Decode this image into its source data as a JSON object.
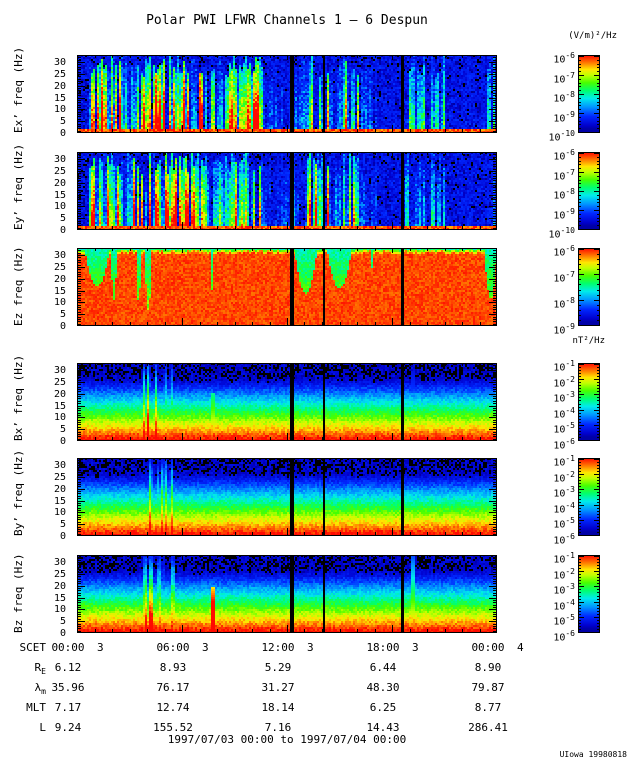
{
  "title": "Polar PWI LFWR Channels 1 – 6 Despun",
  "credit": "UIowa 19980818",
  "footer": {
    "rows": [
      {
        "label": "SCET",
        "sub": "",
        "values": [
          "00:00",
          "06:00",
          "12:00",
          "18:00",
          "00:00"
        ],
        "days": [
          "3",
          "3",
          "3",
          "3",
          "4"
        ]
      },
      {
        "label": "R",
        "sub": "E",
        "values": [
          "6.12",
          "8.93",
          "5.29",
          "6.44",
          "8.90"
        ]
      },
      {
        "label": "λ",
        "sub": "m",
        "values": [
          "35.96",
          "76.17",
          "31.27",
          "48.30",
          "79.87"
        ]
      },
      {
        "label": "MLT",
        "sub": "",
        "values": [
          "7.17",
          "12.74",
          "18.14",
          "6.25",
          "8.77"
        ]
      },
      {
        "label": "L",
        "sub": "",
        "values": [
          "9.24",
          "155.52",
          "7.16",
          "14.43",
          "286.41"
        ]
      }
    ],
    "date_range": "1997/07/03 00:00 to 1997/07/04 00:00"
  },
  "chart_data": {
    "type": "heatmap",
    "title": "Polar PWI LFWR Channels 1 – 6 Despun",
    "x_axis": {
      "label": "SCET",
      "start": "1997/07/03 00:00",
      "end": "1997/07/04 00:00",
      "major_tick_labels": [
        "00:00",
        "06:00",
        "12:00",
        "18:00",
        "00:00"
      ],
      "major_tick_days": [
        "3",
        "3",
        "3",
        "3",
        "4"
      ],
      "minor_tick_interval_hours": 1
    },
    "y_axis": {
      "label_suffix": "freq (Hz)",
      "ticks": [
        0,
        5,
        10,
        15,
        20,
        25,
        30
      ],
      "range": [
        0,
        33
      ]
    },
    "colorbar_units": {
      "electric": "(V/m)²/Hz",
      "magnetic": "nT²/Hz"
    },
    "data_gap_fractions": [
      0.512,
      0.588,
      0.776
    ],
    "panels": [
      {
        "id": "ex",
        "ylabel": "Ex’ freq (Hz)",
        "cb_exponents": [
          -6,
          -7,
          -8,
          -9,
          -10
        ],
        "render": {
          "kind": "e_active",
          "seed": 11,
          "scale": 1.0,
          "segments": [
            [
              0.0,
              0.028,
              0.1
            ],
            [
              0.028,
              0.105,
              0.95
            ],
            [
              0.105,
              0.135,
              0.45
            ],
            [
              0.135,
              0.305,
              1.0
            ],
            [
              0.305,
              0.36,
              0.6
            ],
            [
              0.36,
              0.445,
              0.88
            ],
            [
              0.445,
              0.512,
              0.26
            ],
            [
              0.516,
              0.55,
              0.32
            ],
            [
              0.55,
              0.6,
              0.95
            ],
            [
              0.6,
              0.635,
              0.38
            ],
            [
              0.635,
              0.67,
              0.85
            ],
            [
              0.67,
              0.712,
              0.3
            ],
            [
              0.712,
              0.776,
              0.13
            ],
            [
              0.78,
              0.875,
              0.5
            ],
            [
              0.875,
              0.975,
              0.15
            ],
            [
              0.975,
              1.0,
              0.45
            ]
          ]
        }
      },
      {
        "id": "ey",
        "ylabel": "Ey’ freq (Hz)",
        "cb_exponents": [
          -6,
          -7,
          -8,
          -9,
          -10
        ],
        "render": {
          "kind": "e_active",
          "seed": 23,
          "scale": 0.95,
          "segments": [
            [
              0.0,
              0.028,
              0.1
            ],
            [
              0.028,
              0.105,
              0.95
            ],
            [
              0.105,
              0.135,
              0.45
            ],
            [
              0.135,
              0.305,
              1.0
            ],
            [
              0.305,
              0.36,
              0.6
            ],
            [
              0.36,
              0.445,
              0.85
            ],
            [
              0.445,
              0.512,
              0.26
            ],
            [
              0.516,
              0.55,
              0.32
            ],
            [
              0.55,
              0.6,
              0.92
            ],
            [
              0.6,
              0.635,
              0.38
            ],
            [
              0.635,
              0.67,
              0.85
            ],
            [
              0.67,
              0.712,
              0.3
            ],
            [
              0.712,
              0.776,
              0.13
            ],
            [
              0.78,
              0.875,
              0.48
            ],
            [
              0.875,
              0.975,
              0.15
            ],
            [
              0.975,
              1.0,
              0.45
            ]
          ]
        }
      },
      {
        "id": "ez",
        "ylabel": "Ez freq (Hz)",
        "cb_exponents": [
          -6,
          -7,
          -8,
          -9
        ],
        "render": {
          "kind": "e_saturated",
          "seed": 37,
          "dips": [
            {
              "x": 0.048,
              "w": 0.055,
              "d": 0.5
            },
            {
              "x": 0.088,
              "w": 0.014,
              "d": 0.34
            },
            {
              "x": 0.147,
              "w": 0.01,
              "d": 0.26
            },
            {
              "x": 0.17,
              "w": 0.016,
              "d": 0.2
            },
            {
              "x": 0.323,
              "w": 0.006,
              "d": 0.3
            },
            {
              "x": 0.545,
              "w": 0.05,
              "d": 0.42
            },
            {
              "x": 0.625,
              "w": 0.055,
              "d": 0.48
            },
            {
              "x": 0.703,
              "w": 0.005,
              "d": 0.72
            },
            {
              "x": 0.985,
              "w": 0.028,
              "d": 0.34
            }
          ]
        }
      },
      {
        "id": "bx",
        "ylabel": "Bx’ freq (Hz)",
        "cb_exponents": [
          -1,
          -2,
          -3,
          -4,
          -5,
          -6
        ],
        "render": {
          "kind": "b_gradient",
          "seed": 41,
          "burst": {
            "x0": 0.155,
            "x1": 0.235,
            "boost": 0.85
          },
          "spikes": [
            {
              "x": 0.324,
              "boost": 0.62,
              "fmax": 0.62
            },
            {
              "x": 0.8,
              "boost": 0.3,
              "fmax": 0.9
            }
          ]
        }
      },
      {
        "id": "by",
        "ylabel": "By’ freq (Hz)",
        "cb_exponents": [
          -1,
          -2,
          -3,
          -4,
          -5,
          -6
        ],
        "render": {
          "kind": "b_gradient",
          "seed": 53,
          "burst": {
            "x0": 0.155,
            "x1": 0.235,
            "boost": 0.7
          },
          "spikes": [
            {
              "x": 0.324,
              "boost": 0.28,
              "fmax": 0.45
            }
          ]
        }
      },
      {
        "id": "bz",
        "ylabel": "Bz freq (Hz)",
        "cb_exponents": [
          -1,
          -2,
          -3,
          -4,
          -5,
          -6
        ],
        "render": {
          "kind": "b_gradient",
          "seed": 67,
          "burst": {
            "x0": 0.155,
            "x1": 0.235,
            "boost": 0.78
          },
          "spikes": [
            {
              "x": 0.322,
              "boost": 0.95,
              "fmax": 0.58
            },
            {
              "x": 0.8,
              "boost": 0.62,
              "fmax": 1.0
            }
          ]
        }
      }
    ]
  }
}
